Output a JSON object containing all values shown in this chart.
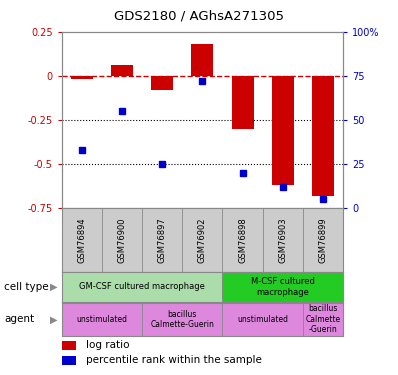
{
  "title": "GDS2180 / AGhsA271305",
  "samples": [
    "GSM76894",
    "GSM76900",
    "GSM76897",
    "GSM76902",
    "GSM76898",
    "GSM76903",
    "GSM76899"
  ],
  "log_ratio": [
    -0.02,
    0.06,
    -0.08,
    0.18,
    -0.3,
    -0.62,
    -0.68
  ],
  "percentile_rank": [
    33,
    55,
    25,
    72,
    20,
    12,
    5
  ],
  "ylim_left": [
    -0.75,
    0.25
  ],
  "ylim_right": [
    0,
    100
  ],
  "left_yticks": [
    -0.75,
    -0.5,
    -0.25,
    0,
    0.25
  ],
  "right_yticks": [
    0,
    25,
    50,
    75,
    100
  ],
  "right_yticklabels": [
    "0",
    "25",
    "50",
    "75",
    "100%"
  ],
  "dotted_lines": [
    -0.25,
    -0.5
  ],
  "cell_type_groups": [
    {
      "label": "GM-CSF cultured macrophage",
      "start": 0,
      "end": 4,
      "color": "#AADDAA"
    },
    {
      "label": "M-CSF cultured\nmacrophage",
      "start": 4,
      "end": 7,
      "color": "#22CC22"
    }
  ],
  "agent_groups": [
    {
      "label": "unstimulated",
      "start": 0,
      "end": 2,
      "color": "#DD88DD"
    },
    {
      "label": "bacillus\nCalmette-Guerin",
      "start": 2,
      "end": 4,
      "color": "#DD88DD"
    },
    {
      "label": "unstimulated",
      "start": 4,
      "end": 6,
      "color": "#DD88DD"
    },
    {
      "label": "bacillus\nCalmette\n-Guerin",
      "start": 6,
      "end": 7,
      "color": "#DD88DD"
    }
  ],
  "log_ratio_color": "#CC0000",
  "percentile_color": "#0000CC",
  "bar_width": 0.55,
  "bg_color": "#FFFFFF",
  "axis_box_color": "#888888",
  "label_bg_color": "#CCCCCC"
}
